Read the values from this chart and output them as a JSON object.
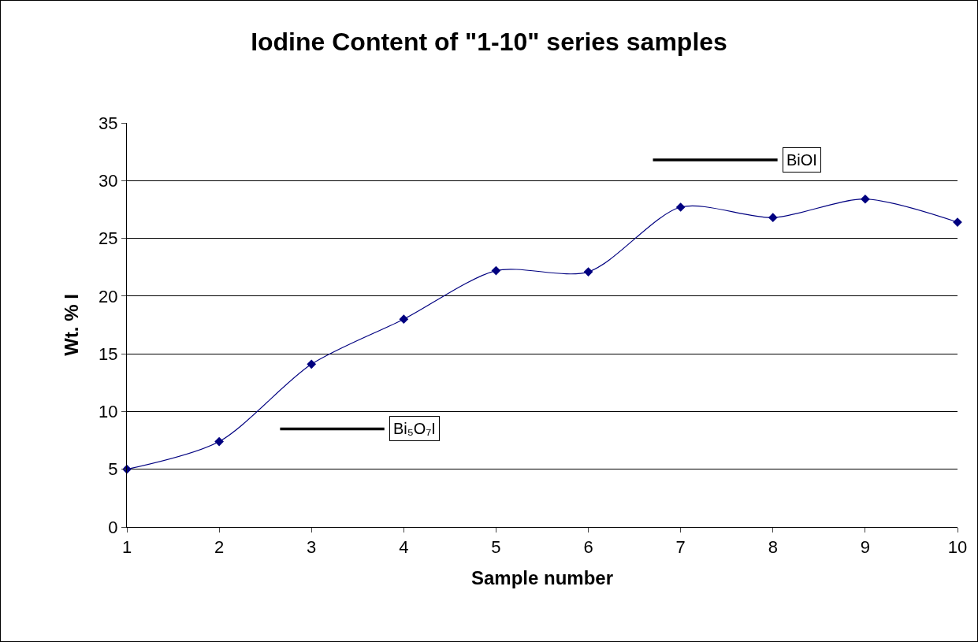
{
  "chart_data": {
    "type": "line",
    "title": "Iodine Content of \"1-10\" series samples",
    "xlabel": "Sample number",
    "ylabel": "Wt. % I",
    "x": [
      1,
      2,
      3,
      4,
      5,
      6,
      7,
      8,
      9,
      10
    ],
    "series": [
      {
        "color": "#000080",
        "values": [
          5.0,
          7.4,
          14.1,
          18.0,
          22.2,
          22.1,
          27.7,
          26.8,
          28.4,
          26.4
        ]
      },
      {
        "type": "line",
        "name": "BiOI",
        "color": "#000000",
        "marker": "none",
        "x": [
          6.7,
          8.05
        ],
        "values": [
          31.8,
          31.8
        ]
      },
      {
        "type": "line",
        "name": "Bi₅O₇I",
        "color": "#000000",
        "marker": "none",
        "x": [
          2.66,
          3.79
        ],
        "values": [
          8.5,
          8.5
        ]
      }
    ],
    "xlim": [
      1,
      10
    ],
    "xticks": [
      1,
      2,
      3,
      4,
      5,
      6,
      7,
      8,
      9,
      10
    ],
    "ylim": [
      0,
      35
    ],
    "yticks": [
      0,
      5,
      10,
      15,
      20,
      25,
      30,
      35
    ],
    "grid": "y",
    "legend": false,
    "marker": "diamond",
    "line_style": "solid"
  }
}
